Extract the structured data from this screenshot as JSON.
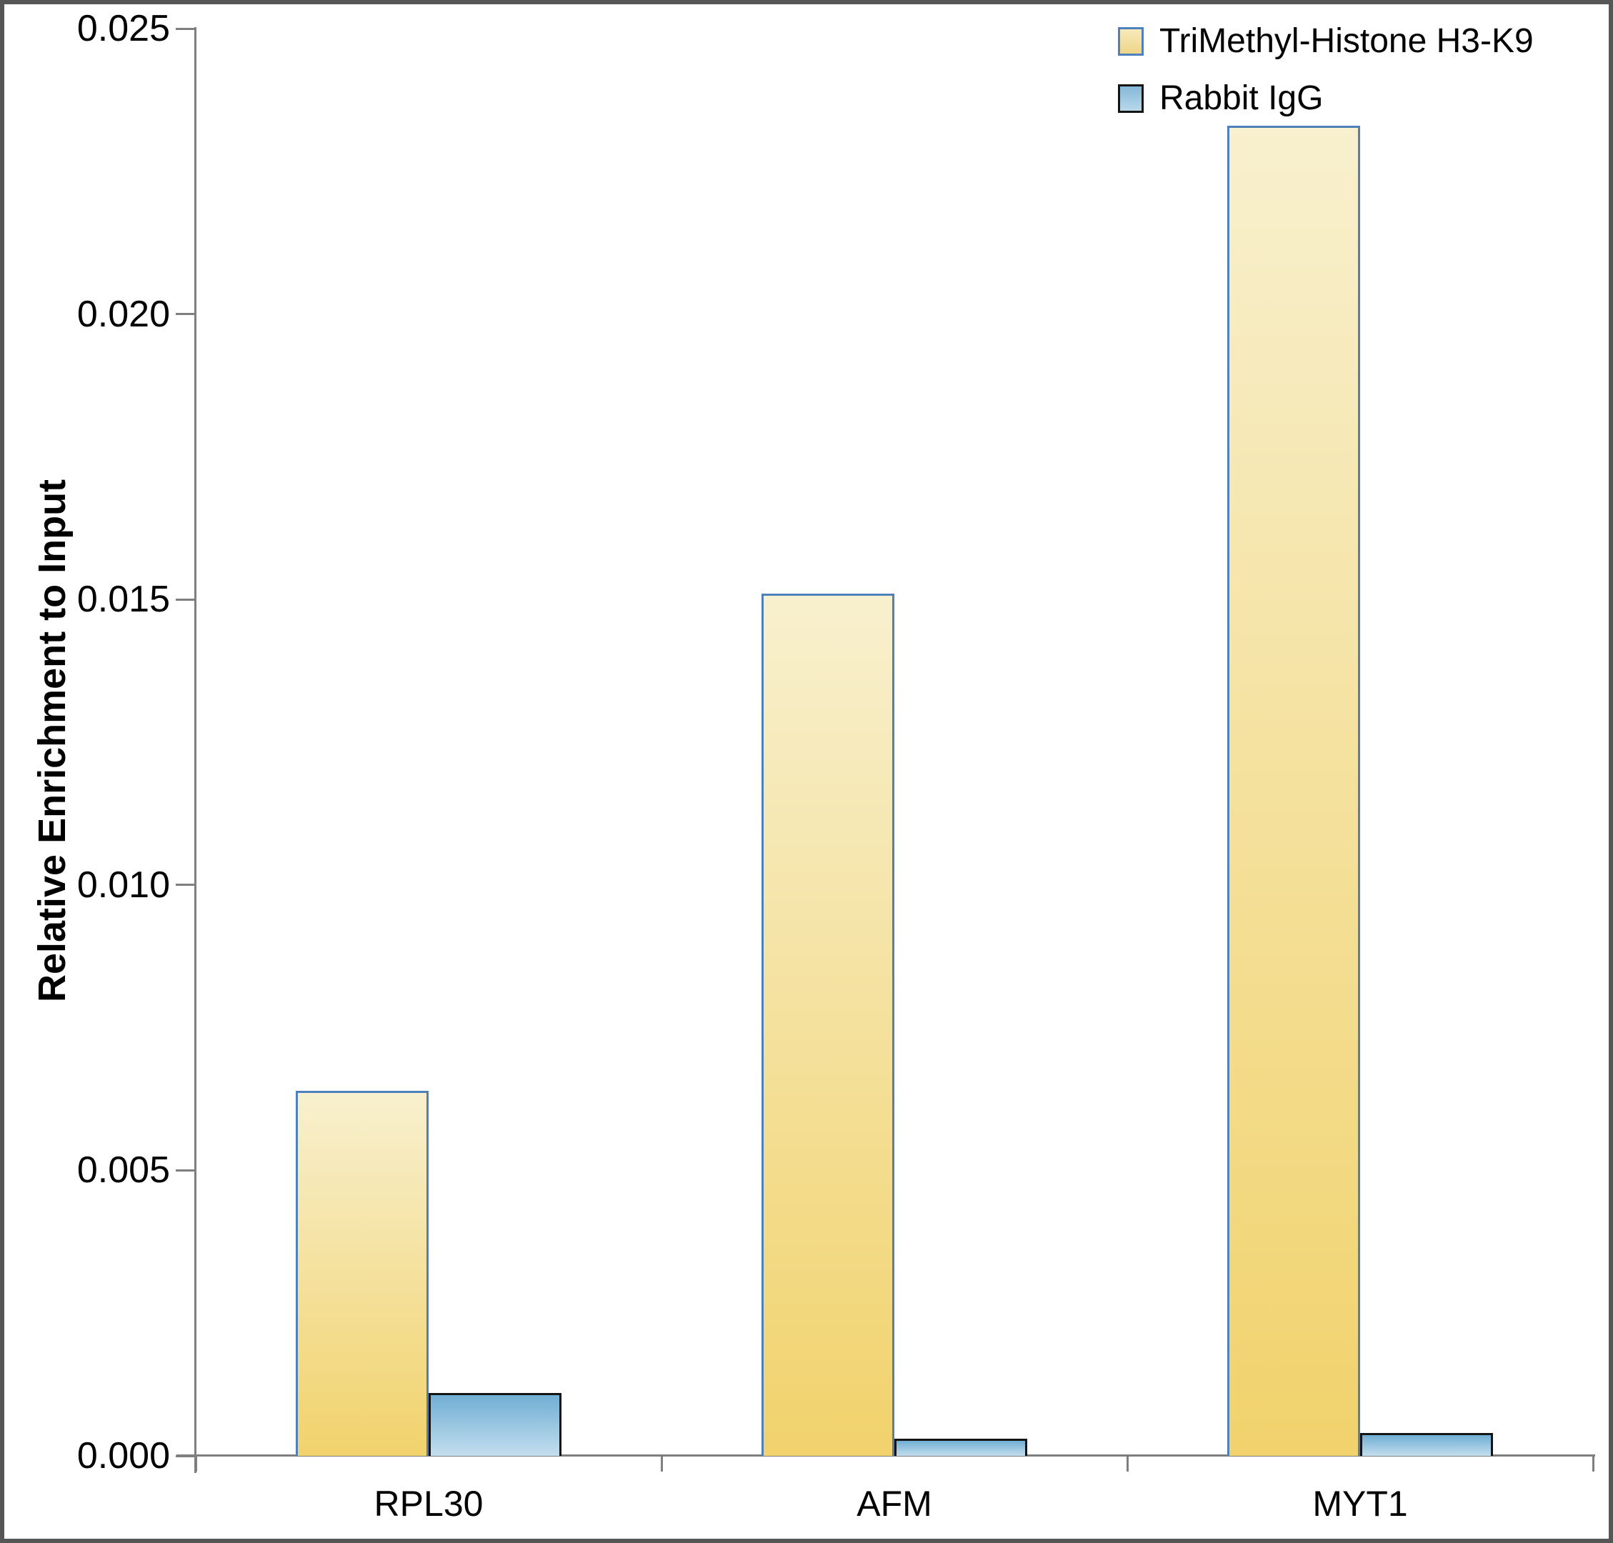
{
  "y_axis": {
    "title": "Relative Enrichment to Input",
    "tick_labels": [
      "0.000",
      "0.005",
      "0.010",
      "0.015",
      "0.020",
      "0.025"
    ]
  },
  "x_axis": {
    "category_labels": [
      "RPL30",
      "AFM",
      "MYT1"
    ]
  },
  "legend": [
    {
      "label": "TriMethyl-Histone H3-K9",
      "swatch_top": "#F7EBBB",
      "swatch_bottom": "#EFD588",
      "swatch_border": "#4E81BB"
    },
    {
      "label": "Rabbit IgG",
      "swatch_top": "#85B8D8",
      "swatch_bottom": "#B9D8EA",
      "swatch_border": "#141414"
    }
  ],
  "colors": {
    "axis_grey": "#7f7f7f",
    "trimethyl_fill_top": "#F8F0CE",
    "trimethyl_fill_bottom": "#F1D26C",
    "trimethyl_border": "#4E81BB",
    "igg_fill_top": "#70AED3",
    "igg_fill_bottom": "#C3DEEE",
    "igg_border": "#141414"
  },
  "chart_data": {
    "type": "bar",
    "title": "",
    "categories": [
      "RPL30",
      "AFM",
      "MYT1"
    ],
    "series": [
      {
        "name": "TriMethyl-Histone H3-K9",
        "values": [
          0.0064,
          0.0151,
          0.0233
        ]
      },
      {
        "name": "Rabbit IgG",
        "values": [
          0.0011,
          0.0003,
          0.0004
        ]
      }
    ],
    "xlabel": "",
    "ylabel": "Relative Enrichment to Input",
    "ylim": [
      0,
      0.025
    ],
    "ytick_step": 0.005,
    "grid": false,
    "legend_position": "top-right"
  }
}
